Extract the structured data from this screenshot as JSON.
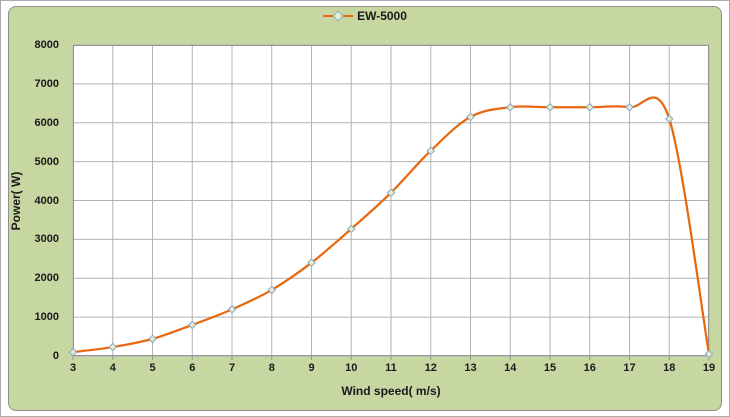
{
  "chart": {
    "colors": {
      "background": "#c7d7a2",
      "panel_border": "#8f8f8f",
      "plot_background": "#ffffff",
      "gridline": "#b2b2b2",
      "axis_line": "#959595",
      "series_line": "#e8680f",
      "marker_fill": "#e6eccb",
      "marker_stroke": "#86a6c6",
      "text": "#1a1a1a"
    }
  },
  "chart_data": {
    "type": "line",
    "title": "",
    "xlabel": "Wind speed( m/s)",
    "ylabel": "Power( W)",
    "xlim": [
      3,
      19
    ],
    "ylim": [
      0,
      8000
    ],
    "x_ticks": [
      3,
      4,
      5,
      6,
      7,
      8,
      9,
      10,
      11,
      12,
      13,
      14,
      15,
      16,
      17,
      18,
      19
    ],
    "y_ticks": [
      0,
      1000,
      2000,
      3000,
      4000,
      5000,
      6000,
      7000,
      8000
    ],
    "grid": true,
    "legend_position": "top",
    "line_style": "smooth",
    "marker": "diamond",
    "series": [
      {
        "name": "EW-5000",
        "x": [
          3,
          4,
          5,
          6,
          7,
          8,
          9,
          10,
          11,
          12,
          13,
          14,
          15,
          16,
          17,
          18,
          19
        ],
        "y": [
          100,
          230,
          440,
          800,
          1200,
          1700,
          2400,
          3270,
          4200,
          5280,
          6150,
          6400,
          6400,
          6400,
          6400,
          6100,
          50
        ]
      }
    ]
  }
}
